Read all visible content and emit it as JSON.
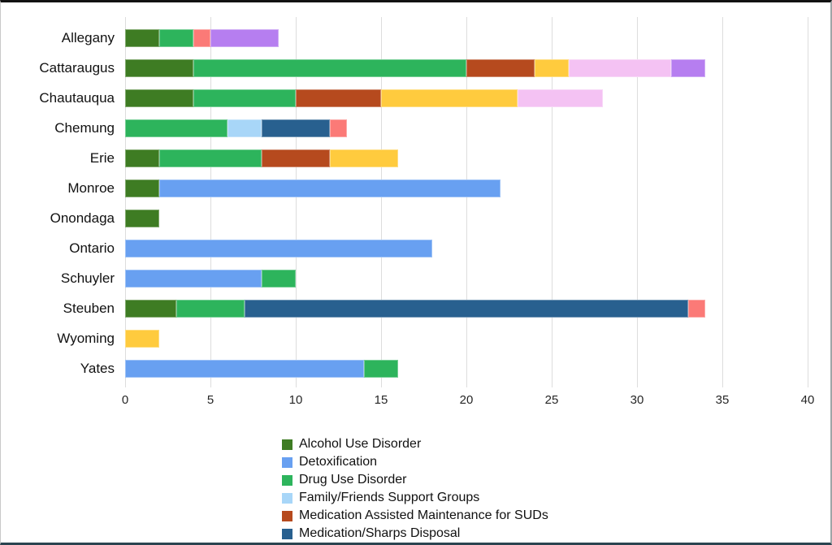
{
  "chart_data": {
    "type": "bar",
    "variant": "horizontal-stacked",
    "title": "",
    "xlabel": "",
    "ylabel": "",
    "grid": true,
    "legend_position": "bottom",
    "x_axis": {
      "min": 0,
      "max": 40,
      "step": 5,
      "ticks": [
        "0",
        "5",
        "10",
        "15",
        "20",
        "25",
        "30",
        "35",
        "40"
      ]
    },
    "categories": [
      "Allegany",
      "Cattaraugus",
      "Chautauqua",
      "Chemung",
      "Erie",
      "Monroe",
      "Onondaga",
      "Ontario",
      "Schuyler",
      "Steuben",
      "Wyoming",
      "Yates"
    ],
    "series": [
      {
        "name": "Alcohol Use Disorder",
        "color": "#3e7c23",
        "in_legend": true,
        "values": [
          2,
          4,
          4,
          0,
          2,
          2,
          2,
          0,
          0,
          3,
          0,
          0
        ]
      },
      {
        "name": "Detoxification",
        "color": "#68a0f1",
        "in_legend": true,
        "values": [
          0,
          0,
          0,
          0,
          0,
          20,
          0,
          18,
          8,
          0,
          0,
          14
        ]
      },
      {
        "name": "Drug Use Disorder",
        "color": "#2db45c",
        "in_legend": true,
        "values": [
          2,
          16,
          6,
          6,
          6,
          0,
          0,
          0,
          2,
          4,
          0,
          2
        ]
      },
      {
        "name": "Family/Friends Support Groups",
        "color": "#a8d6f8",
        "in_legend": true,
        "values": [
          0,
          0,
          0,
          2,
          0,
          0,
          0,
          0,
          0,
          0,
          0,
          0
        ]
      },
      {
        "name": "Medication Assisted Maintenance for SUDs",
        "color": "#b64a1e",
        "in_legend": true,
        "values": [
          0,
          4,
          5,
          0,
          4,
          0,
          0,
          0,
          0,
          0,
          0,
          0
        ]
      },
      {
        "name": "Medication/Sharps Disposal",
        "color": "#28608f",
        "in_legend": true,
        "values": [
          0,
          0,
          0,
          4,
          0,
          0,
          0,
          0,
          0,
          26,
          0,
          0
        ]
      },
      {
        "name": "unlabeled-yellow-series",
        "color": "#ffcb3e",
        "in_legend": false,
        "values": [
          0,
          2,
          8,
          0,
          4,
          0,
          0,
          0,
          0,
          0,
          2,
          0
        ]
      },
      {
        "name": "unlabeled-salmon-series",
        "color": "#fb7a77",
        "in_legend": false,
        "values": [
          1,
          0,
          0,
          1,
          0,
          0,
          0,
          0,
          0,
          1,
          0,
          0
        ]
      },
      {
        "name": "unlabeled-plum-series",
        "color": "#f4c2f3",
        "in_legend": false,
        "values": [
          0,
          6,
          5,
          0,
          0,
          0,
          0,
          0,
          0,
          0,
          0,
          0
        ]
      },
      {
        "name": "unlabeled-purple-series",
        "color": "#b67ef0",
        "in_legend": false,
        "values": [
          4,
          2,
          0,
          0,
          0,
          0,
          0,
          0,
          0,
          0,
          0,
          0
        ]
      }
    ],
    "legend_visible_entries": [
      "Alcohol Use Disorder",
      "Detoxification",
      "Drug Use Disorder",
      "Family/Friends Support Groups",
      "Medication Assisted Maintenance for SUDs",
      "Medication/Sharps Disposal"
    ],
    "colors": {
      "gridline": "#dddddd",
      "axis_text": "#262626",
      "category_text": "#111111"
    }
  }
}
